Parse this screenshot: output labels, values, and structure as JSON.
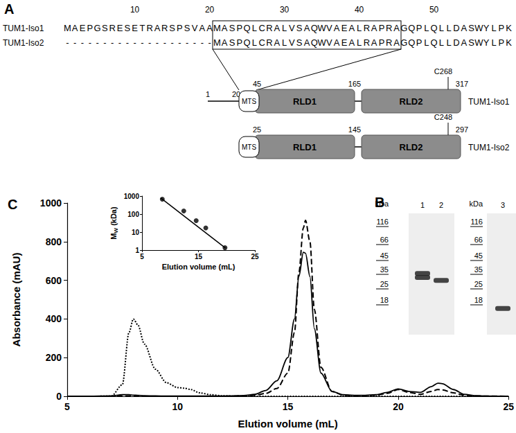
{
  "panel_A": {
    "label": "A",
    "ruler": [
      10,
      20,
      30,
      40,
      50
    ],
    "alignment": [
      {
        "name": "TUM1-Iso1",
        "sequence": "MAEPGSRESETRARSPSVAAMASPQLCRALVSAQWVAEALRAPRAGQPLQLLDASWYLPK"
      },
      {
        "name": "TUM1-Iso2",
        "sequence": "--------------------MASPQLCRALVSAQWVAEALRAPRAGQPLQLLDASWYLPK"
      }
    ],
    "isoforms": [
      {
        "name": "TUM1-Iso1",
        "tail_labels": [
          "1",
          "20"
        ],
        "mts": "MTS",
        "domains": [
          {
            "name": "RLD1",
            "start": "45",
            "end": "165"
          },
          {
            "name": "RLD2",
            "end": "317",
            "site": "C268"
          }
        ]
      },
      {
        "name": "TUM1-Iso2",
        "tail_labels": [],
        "mts": "MTS",
        "domains": [
          {
            "name": "RLD1",
            "start": "25",
            "end": "145"
          },
          {
            "name": "RLD2",
            "end": "297",
            "site": "C248"
          }
        ]
      }
    ]
  },
  "panel_B": {
    "label": "B",
    "unit": "kDa",
    "gels": [
      {
        "markers": [
          116,
          66,
          45,
          35,
          25,
          18
        ],
        "lanes": [
          {
            "label": "1",
            "bands_kDa": [
              31,
              34
            ]
          },
          {
            "label": "2",
            "bands_kDa": [
              29
            ]
          }
        ]
      },
      {
        "markers": [
          116,
          66,
          45,
          35,
          25,
          18
        ],
        "lanes": [
          {
            "label": "3",
            "bands_kDa": [
              16
            ]
          }
        ]
      }
    ]
  },
  "chart_data": [
    {
      "type": "line",
      "title": "C",
      "xlabel": "Elution volume (mL)",
      "ylabel": "Absorbance (mAU)",
      "x": [
        5,
        6,
        7,
        7.5,
        7.8,
        8,
        8.2,
        8.5,
        9,
        9.5,
        10,
        10.3,
        10.6,
        11,
        11.5,
        12,
        12.5,
        13,
        13.5,
        14,
        14.5,
        15,
        15.3,
        15.5,
        15.7,
        15.8,
        16,
        16.2,
        16.5,
        17,
        17.5,
        18,
        18.5,
        19,
        19.5,
        20,
        20.5,
        21,
        21.5,
        21.8,
        22,
        22.5,
        23,
        23.5,
        24,
        25
      ],
      "series": [
        {
          "color": "#000000",
          "line_style": "solid",
          "values": [
            0,
            0,
            2,
            8,
            8,
            6,
            5,
            3,
            2,
            1,
            1,
            1,
            1,
            1,
            1,
            1,
            2,
            4,
            10,
            30,
            80,
            200,
            400,
            620,
            745,
            740,
            620,
            350,
            120,
            25,
            8,
            5,
            5,
            8,
            20,
            38,
            25,
            20,
            50,
            68,
            65,
            35,
            10,
            3,
            1,
            0
          ]
        },
        {
          "color": "#000000",
          "line_style": "dashed",
          "values": [
            0,
            0,
            0,
            0,
            0,
            0,
            0,
            0,
            0,
            0,
            0,
            0,
            0,
            0,
            0,
            0,
            1,
            2,
            5,
            15,
            40,
            120,
            330,
            640,
            870,
            910,
            800,
            450,
            150,
            25,
            6,
            3,
            3,
            6,
            15,
            35,
            20,
            10,
            25,
            35,
            33,
            18,
            5,
            2,
            1,
            0
          ]
        },
        {
          "color": "#000000",
          "line_style": "dotted",
          "values": [
            0,
            0,
            1,
            60,
            330,
            400,
            370,
            270,
            140,
            70,
            45,
            42,
            35,
            18,
            8,
            3,
            1,
            0,
            0,
            0,
            0,
            0,
            0,
            0,
            0,
            0,
            0,
            0,
            0,
            0,
            0,
            0,
            0,
            0,
            0,
            0,
            0,
            0,
            0,
            0,
            0,
            0,
            0,
            0,
            0,
            0
          ]
        }
      ],
      "xlim": [
        5,
        25
      ],
      "xticks": [
        5,
        10,
        15,
        20,
        25
      ],
      "ylim": [
        0,
        1000
      ],
      "yticks": [
        0,
        200,
        400,
        600,
        800,
        1000
      ],
      "grid": false
    },
    {
      "type": "scatter",
      "xlabel": "Elution volume (mL)",
      "ylabel": {
        "text": "M",
        "subscript": "W",
        "suffix": " (kDa)"
      },
      "x": [
        8.6,
        12.4,
        14.6,
        16.3,
        19.7
      ],
      "values": [
        670,
        150,
        43,
        17,
        1.35
      ],
      "color": "#000000",
      "marker": "circle",
      "fit": {
        "x": [
          8.3,
          19.8
        ],
        "values": [
          790,
          1.28
        ]
      },
      "xlim": [
        5,
        25
      ],
      "xticks": [
        5,
        15,
        25
      ],
      "ylim": [
        1,
        1000
      ],
      "yticks": [
        1,
        10,
        100,
        1000
      ],
      "log": "y",
      "grid": false
    }
  ]
}
